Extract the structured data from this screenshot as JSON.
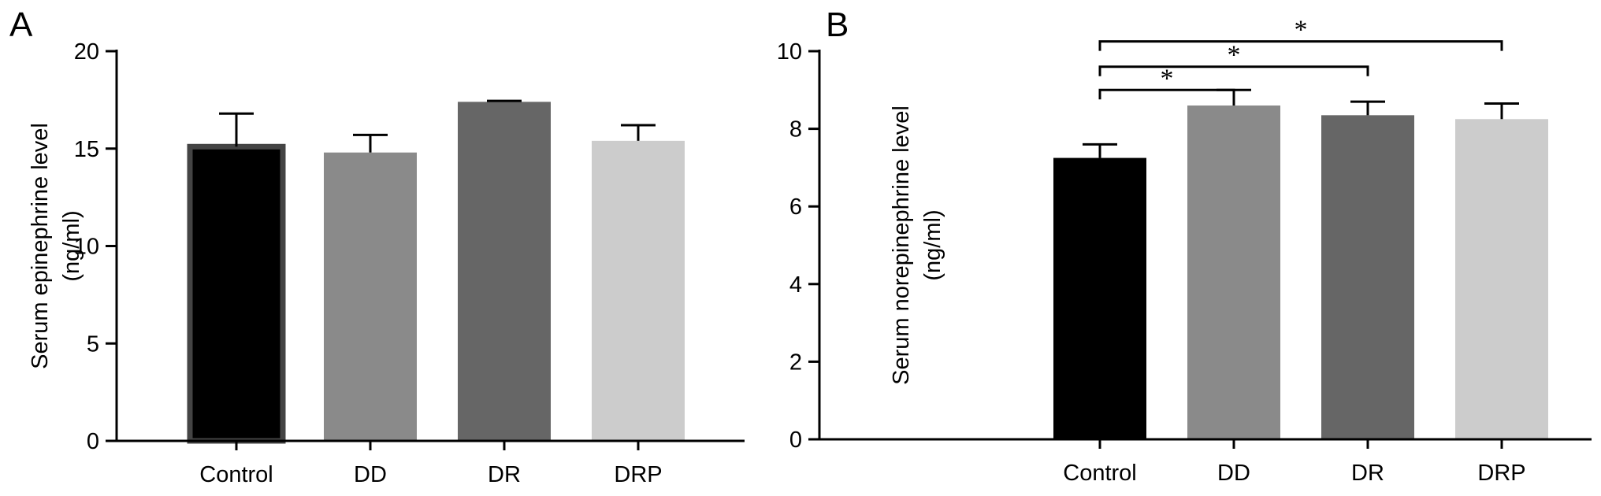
{
  "colors": {
    "Control": "#000000",
    "DD": "#8a8a8a",
    "DR": "#666666",
    "DRP": "#cccccc",
    "axis": "#000000"
  },
  "chart_data": [
    {
      "panel": "A",
      "type": "bar",
      "categories": [
        "Control",
        "DD",
        "DR",
        "DRP"
      ],
      "values": [
        15.1,
        14.8,
        17.4,
        15.4
      ],
      "errors": [
        1.7,
        0.9,
        0.05,
        0.8
      ],
      "ylabel_line1": "Serum epinephrine level",
      "ylabel_line2": "(ng/ml)",
      "ylim": [
        0,
        20
      ],
      "yticks": [
        0,
        5,
        10,
        15,
        20
      ],
      "ytick_labels": [
        "0",
        "5",
        "10",
        "15",
        "20"
      ],
      "significance": []
    },
    {
      "panel": "B",
      "type": "bar",
      "categories": [
        "Control",
        "DD",
        "DR",
        "DRP"
      ],
      "values": [
        7.25,
        8.6,
        8.35,
        8.25
      ],
      "errors": [
        0.35,
        0.4,
        0.35,
        0.4
      ],
      "ylabel_line1": "Serum norepinephrine level",
      "ylabel_line2": "(ng/ml)",
      "ylim": [
        0,
        10
      ],
      "yticks": [
        0,
        2,
        4,
        6,
        8,
        10
      ],
      "ytick_labels": [
        "0",
        "2",
        "4",
        "6",
        "8",
        "10"
      ],
      "significance": [
        {
          "from": "Control",
          "to": "DD",
          "label": "*",
          "level": 9.0
        },
        {
          "from": "Control",
          "to": "DR",
          "label": "*",
          "level": 9.6
        },
        {
          "from": "Control",
          "to": "DRP",
          "label": "*",
          "level": 10.25
        }
      ]
    }
  ]
}
